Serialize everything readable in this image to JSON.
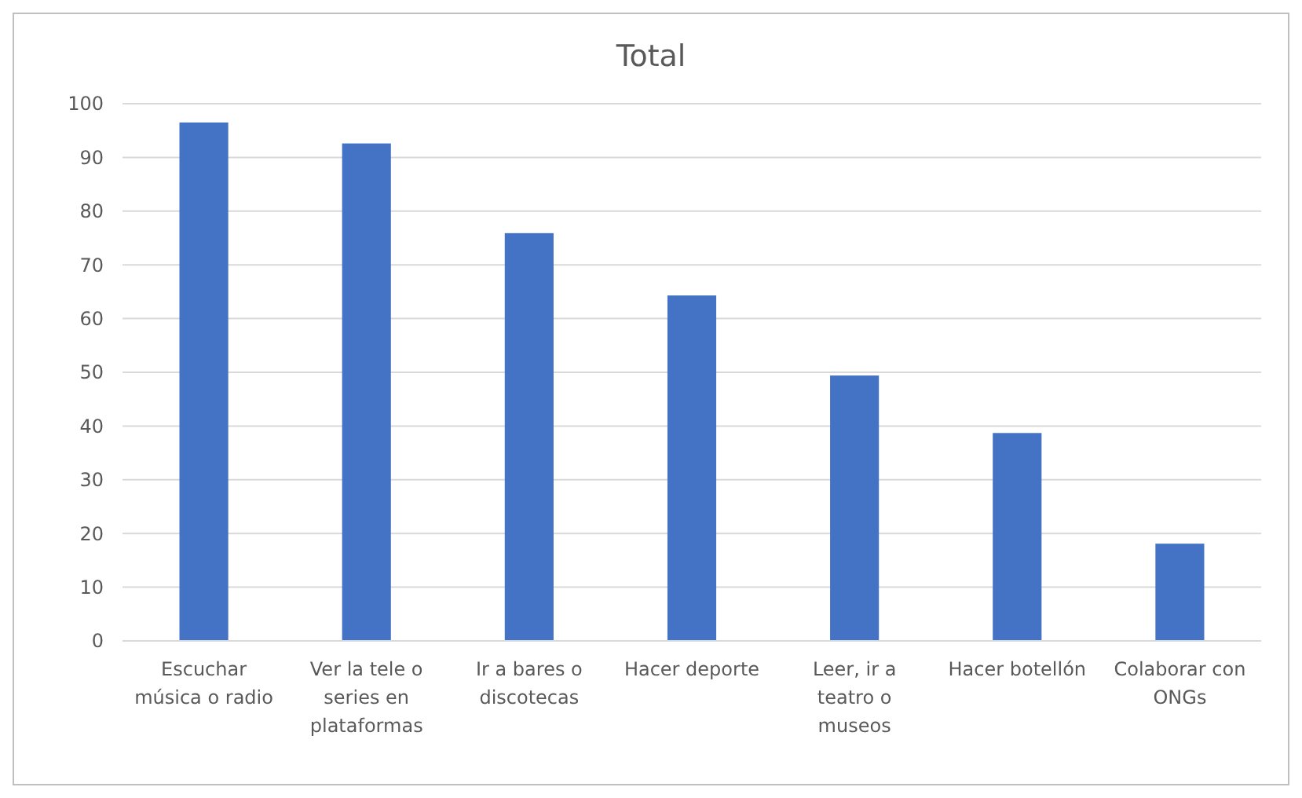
{
  "chart_data": {
    "type": "bar",
    "title": "Total",
    "categories": [
      "Escuchar música o radio",
      "Ver la tele o series en plataformas",
      "Ir a bares o discotecas",
      "Hacer deporte",
      "Leer, ir a teatro o museos",
      "Hacer botellón",
      "Colaborar con ONGs"
    ],
    "values": [
      96.5,
      92.6,
      75.9,
      64.3,
      49.4,
      38.7,
      18.1
    ],
    "color": "#4472c4",
    "ylim": [
      0,
      100
    ],
    "yticks": [
      0,
      10,
      20,
      30,
      40,
      50,
      60,
      70,
      80,
      90,
      100
    ],
    "grid": "y"
  }
}
